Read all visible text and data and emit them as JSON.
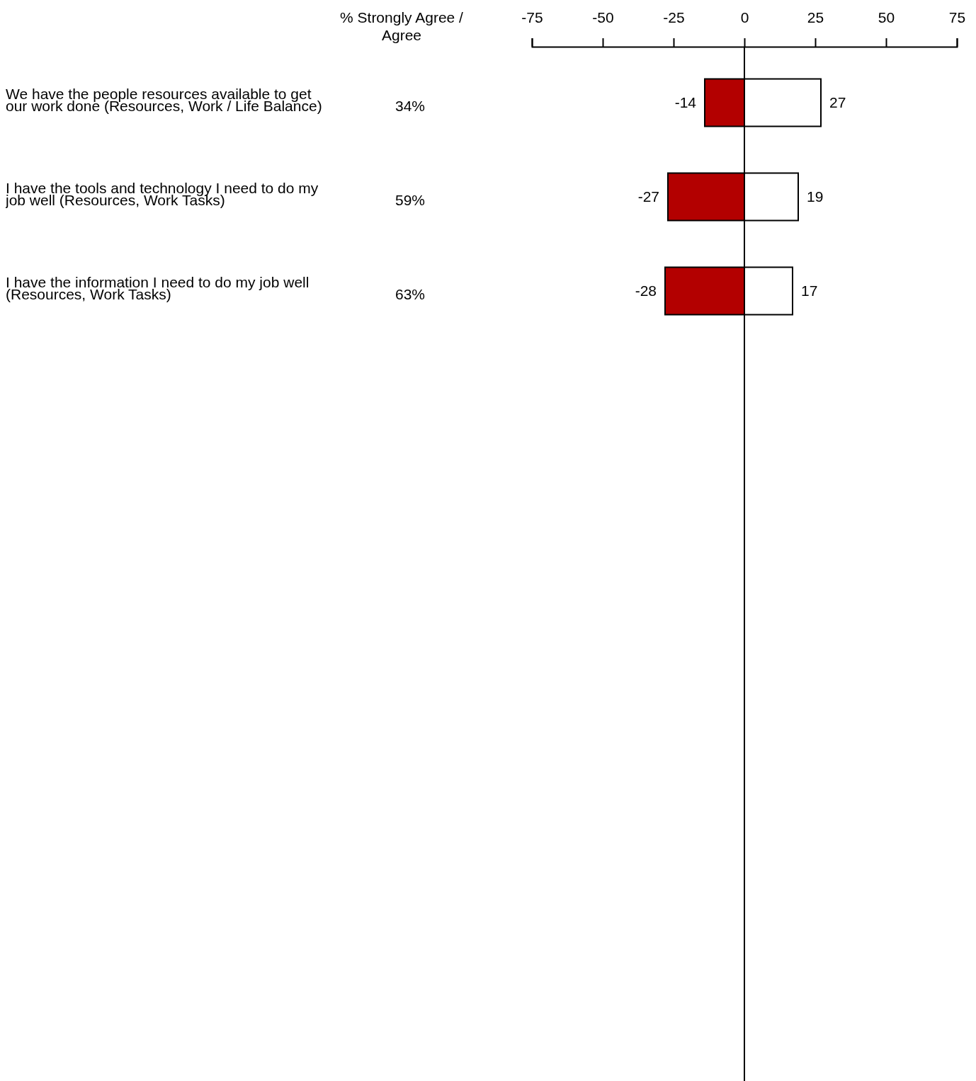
{
  "chart_data": {
    "type": "bar",
    "orientation": "horizontal",
    "stacked": true,
    "categories": [
      "We have the people resources available to get our work done (Resources, Work / Life Balance)",
      "I have the tools and technology I need to do my job well (Resources, Work Tasks)",
      "I have the information I need to do my job well (Resources, Work Tasks)"
    ],
    "series": [
      {
        "color": "#b30000",
        "values": [
          -14,
          -27,
          -28
        ]
      },
      {
        "color": "#ffffff",
        "values": [
          27,
          19,
          17
        ]
      }
    ],
    "x2lim": [
      -75,
      75
    ],
    "x2ticks": [
      -75,
      -50,
      -25,
      0,
      25,
      50,
      75
    ],
    "data_labels": true,
    "grid": false,
    "ref_lines": [
      {
        "axis": "x2",
        "value": 0
      }
    ],
    "annotations": [
      "% Strongly Agree / Agree",
      "34%",
      "59%",
      "63%"
    ]
  }
}
